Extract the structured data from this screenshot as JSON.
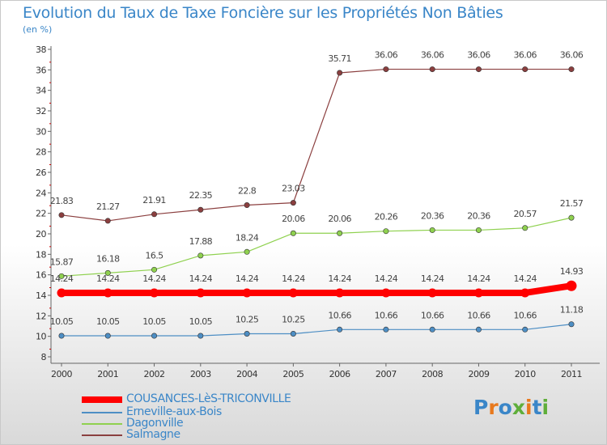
{
  "title": "Evolution du Taux de Taxe Foncière sur les Propriétés Non Bâties",
  "unit_label": "(en %)",
  "logo": {
    "text": "Proxiti",
    "colors": [
      "#3a86c8",
      "#e8791d",
      "#3a86c8",
      "#5fae3a",
      "#e8791d",
      "#3a86c8",
      "#5fae3a"
    ]
  },
  "chart_data": {
    "type": "line",
    "title": "Evolution du Taux de Taxe Foncière sur les Propriétés Non Bâties",
    "ylabel": "(en %)",
    "xlabel": "",
    "x": [
      "2000",
      "2001",
      "2002",
      "2003",
      "2004",
      "2005",
      "2006",
      "2007",
      "2008",
      "2009",
      "2010",
      "2011"
    ],
    "ylim": [
      8,
      38
    ],
    "yticks": [
      8,
      10,
      12,
      14,
      16,
      18,
      20,
      22,
      24,
      26,
      28,
      30,
      32,
      34,
      36,
      38
    ],
    "ytick_labels": [
      "8",
      "10",
      "12",
      "14",
      "16",
      "18",
      "20",
      "22",
      "24",
      "26",
      "28",
      "30",
      "32",
      "34",
      "36",
      "38"
    ],
    "grid": false,
    "legend_position": "bottom-left",
    "series": [
      {
        "name": "COUSANCES-LèS-TRICONVILLE",
        "color": "#ff0000",
        "values": [
          14.24,
          14.24,
          14.24,
          14.24,
          14.24,
          14.24,
          14.24,
          14.24,
          14.24,
          14.24,
          14.24,
          14.93
        ],
        "labels": [
          "14.24",
          "14.24",
          "14.24",
          "14.24",
          "14.24",
          "14.24",
          "14.24",
          "14.24",
          "14.24",
          "14.24",
          "14.24",
          "14.93"
        ]
      },
      {
        "name": "Erneville-aux-Bois",
        "color": "#4d8ec4",
        "values": [
          10.05,
          10.05,
          10.05,
          10.05,
          10.25,
          10.25,
          10.66,
          10.66,
          10.66,
          10.66,
          10.66,
          11.18
        ],
        "labels": [
          "10.05",
          "10.05",
          "10.05",
          "10.05",
          "10.25",
          "10.25",
          "10.66",
          "10.66",
          "10.66",
          "10.66",
          "10.66",
          "11.18"
        ]
      },
      {
        "name": "Dagonville",
        "color": "#8fd14f",
        "values": [
          15.87,
          16.18,
          16.5,
          17.88,
          18.24,
          20.06,
          20.06,
          20.26,
          20.36,
          20.36,
          20.57,
          21.57
        ],
        "labels": [
          "15.87",
          "16.18",
          "16.5",
          "17.88",
          "18.24",
          "20.06",
          "20.06",
          "20.26",
          "20.36",
          "20.36",
          "20.57",
          "21.57"
        ]
      },
      {
        "name": "Salmagne",
        "color": "#8b3f3f",
        "values": [
          21.83,
          21.27,
          21.91,
          22.35,
          22.8,
          23.03,
          35.71,
          36.06,
          36.06,
          36.06,
          36.06,
          36.06
        ],
        "labels": [
          "21.83",
          "21.27",
          "21.91",
          "22.35",
          "22.8",
          "23.03",
          "35.71",
          "36.06",
          "36.06",
          "36.06",
          "36.06",
          "36.06"
        ]
      }
    ]
  },
  "legend": {
    "items": [
      {
        "label": "COUSANCES-LèS-TRICONVILLE",
        "color": "#ff0000"
      },
      {
        "label": "Erneville-aux-Bois",
        "color": "#4d8ec4"
      },
      {
        "label": "Dagonville",
        "color": "#8fd14f"
      },
      {
        "label": "Salmagne",
        "color": "#8b3f3f"
      }
    ]
  }
}
